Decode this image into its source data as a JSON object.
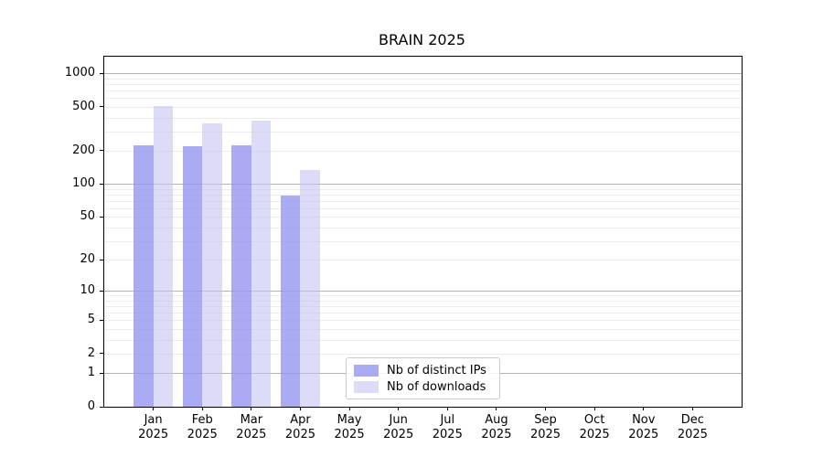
{
  "chart_data": {
    "type": "bar",
    "title": "BRAIN 2025",
    "categories": [
      "Jan",
      "Feb",
      "Mar",
      "Apr",
      "May",
      "Jun",
      "Jul",
      "Aug",
      "Sep",
      "Oct",
      "Nov",
      "Dec"
    ],
    "year": "2025",
    "series": [
      {
        "name": "Nb of distinct IPs",
        "color": "rgba(150,150,240,0.80)",
        "color_hex": "#ababf3",
        "values": [
          225,
          220,
          225,
          79,
          0,
          0,
          0,
          0,
          0,
          0,
          0,
          0
        ]
      },
      {
        "name": "Nb of downloads",
        "color": "rgba(195,195,243,0.58)",
        "color_hex": "#dcdcf8",
        "values": [
          510,
          355,
          375,
          135,
          0,
          0,
          0,
          0,
          0,
          0,
          0,
          0
        ]
      }
    ],
    "xlabel": "",
    "ylabel": "",
    "yscale": "log1p",
    "yticks": [
      0,
      1,
      2,
      5,
      10,
      20,
      50,
      100,
      200,
      500,
      1000
    ],
    "ylim": [
      0,
      1412
    ],
    "grid": "on",
    "legend_position": "lower center",
    "colors": {
      "major_grid": "#b2b2b2",
      "minor_grid": "#ececec",
      "axis": "#000000",
      "background": "#ffffff"
    }
  }
}
